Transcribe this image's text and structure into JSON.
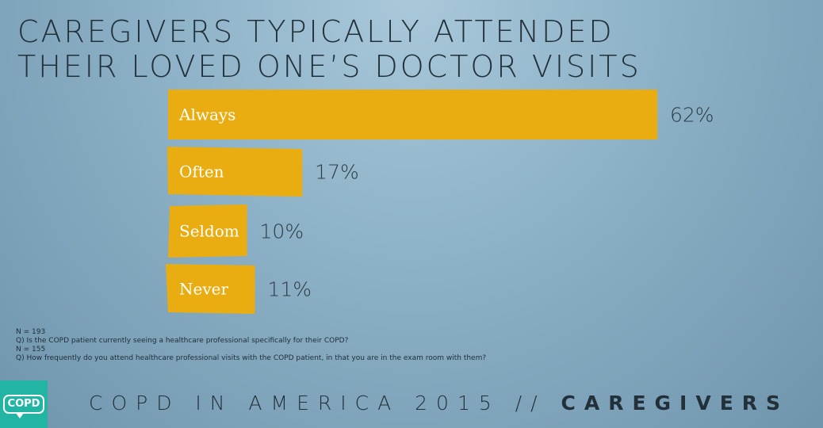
{
  "title": {
    "line1": "CAREGIVERS TYPICALLY ATTENDED",
    "line2": "THEIR LOVED ONE’S DOCTOR VISITS"
  },
  "chart_data": {
    "type": "bar",
    "orientation": "horizontal",
    "categories": [
      "Always",
      "Often",
      "Seldom",
      "Never"
    ],
    "values": [
      62,
      17,
      10,
      11
    ],
    "value_labels": [
      "62%",
      "17%",
      "10%",
      "11%"
    ],
    "unit": "%",
    "xlim": [
      0,
      62
    ],
    "grid": false,
    "legend": "none",
    "bar_color": "#e9ad12",
    "title": "CAREGIVERS TYPICALLY ATTENDED THEIR LOVED ONE’S DOCTOR VISITS",
    "xlabel": "",
    "ylabel": ""
  },
  "notes": [
    "N = 193",
    "Q) Is the COPD patient currently seeing a healthcare professional specifically for their COPD?",
    "N = 155",
    "Q) How frequently do you attend healthcare professional visits with the COPD patient, in that you are in the exam room with them?"
  ],
  "logo": {
    "text": "COPD",
    "color": "#22b5a3"
  },
  "footer": {
    "prefix": "COPD IN AMERICA 2015 //",
    "emphasis": "CAREGIVERS"
  }
}
